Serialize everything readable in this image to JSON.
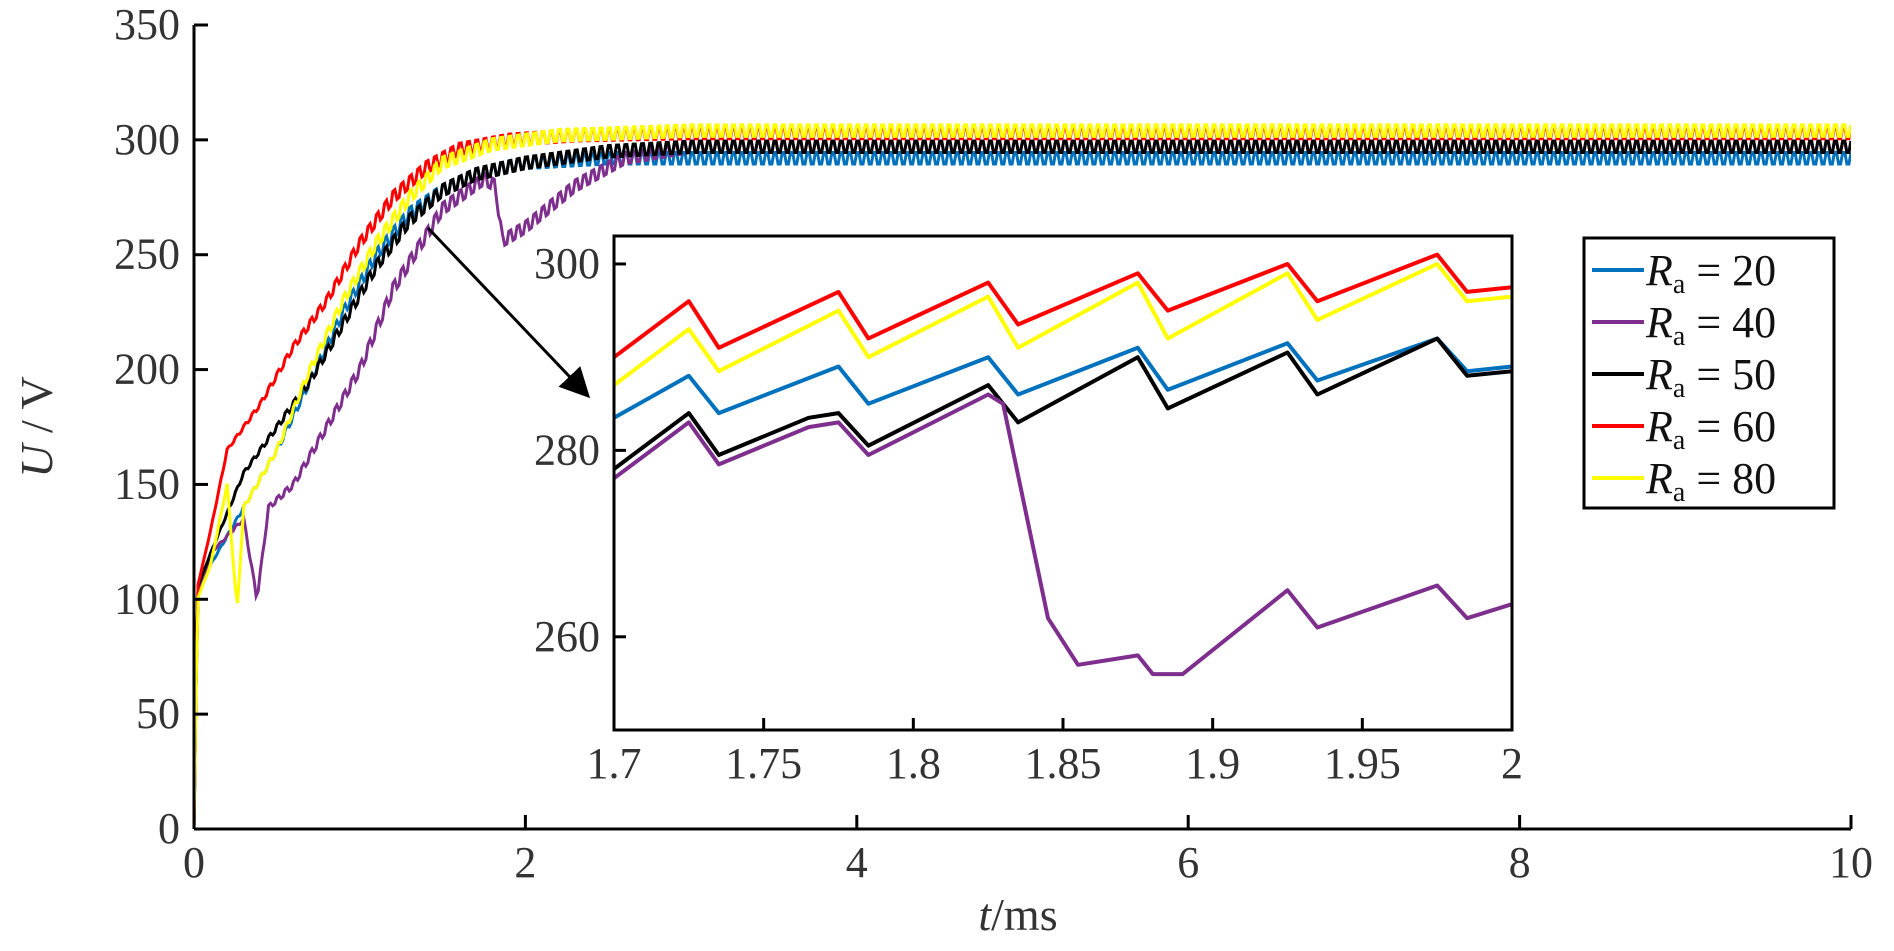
{
  "chart_data": [
    {
      "type": "line",
      "xlabel_var": "t",
      "xlabel_unit": "/ms",
      "ylabel_var": "U",
      "ylabel_unit": " / V",
      "xlim": [
        0,
        10
      ],
      "ylim": [
        0,
        350
      ],
      "xticks": [
        "0",
        "2",
        "4",
        "6",
        "8",
        "10"
      ],
      "yticks": [
        "0",
        "50",
        "100",
        "150",
        "200",
        "250",
        "300",
        "350"
      ],
      "grid": false,
      "legend_position": "right",
      "series": [
        {
          "name_var": "R",
          "name_sub": "a",
          "name_rest": " = 20",
          "color": "#0072BD",
          "x": [
            0,
            0.02,
            0.1,
            0.3,
            0.5,
            0.7,
            0.9,
            1.1,
            1.3,
            1.5,
            1.7,
            2.0,
            2.5,
            3,
            10
          ],
          "y": [
            0,
            105,
            115,
            140,
            165,
            195,
            225,
            250,
            268,
            278,
            285,
            290,
            292,
            292,
            292
          ],
          "steady_ripple": 2.5
        },
        {
          "name_var": "R",
          "name_sub": "a",
          "name_rest": " = 40",
          "color": "#7E2F8E",
          "x": [
            0,
            0.02,
            0.1,
            0.3,
            0.38,
            0.45,
            0.6,
            0.8,
            1.0,
            1.2,
            1.5,
            1.75,
            1.82,
            1.86,
            2.0,
            2.3,
            2.6,
            3.0,
            10
          ],
          "y": [
            0,
            100,
            120,
            135,
            100,
            140,
            150,
            175,
            200,
            235,
            270,
            283,
            280,
            256,
            262,
            280,
            292,
            297,
            297
          ],
          "steady_ripple": 2.5
        },
        {
          "name_var": "R",
          "name_sub": "a",
          "name_rest": " = 50",
          "color": "#000000",
          "x": [
            0,
            0.02,
            0.1,
            0.3,
            0.5,
            0.7,
            0.9,
            1.1,
            1.3,
            1.5,
            1.7,
            2.0,
            2.5,
            3,
            10
          ],
          "y": [
            0,
            105,
            120,
            155,
            175,
            195,
            220,
            245,
            265,
            278,
            285,
            290,
            295,
            297,
            297
          ],
          "steady_ripple": 2.5
        },
        {
          "name_var": "R",
          "name_sub": "a",
          "name_rest": " = 60",
          "color": "#FF0000",
          "x": [
            0,
            0.02,
            0.1,
            0.2,
            0.4,
            0.6,
            0.8,
            1.0,
            1.2,
            1.4,
            1.6,
            1.9,
            2.3,
            3,
            10
          ],
          "y": [
            0,
            105,
            130,
            165,
            185,
            210,
            230,
            255,
            275,
            288,
            296,
            300,
            302,
            303,
            303
          ],
          "steady_ripple": 2.5
        },
        {
          "name_var": "R",
          "name_sub": "a",
          "name_rest": " = 80",
          "color": "#FFFF00",
          "x": [
            0,
            0.02,
            0.1,
            0.2,
            0.26,
            0.3,
            0.5,
            0.7,
            0.9,
            1.1,
            1.3,
            1.5,
            1.8,
            2.2,
            3,
            10
          ],
          "y": [
            0,
            100,
            115,
            150,
            95,
            140,
            165,
            200,
            230,
            255,
            275,
            290,
            298,
            302,
            304,
            304
          ],
          "steady_ripple": 2.5
        }
      ]
    },
    {
      "type": "line",
      "role": "inset",
      "xlim": [
        1.7,
        2.0
      ],
      "ylim": [
        250,
        303
      ],
      "xticks": [
        "1.7",
        "1.75",
        "1.8",
        "1.85",
        "1.9",
        "1.95",
        "2"
      ],
      "yticks": [
        "260",
        "280",
        "300"
      ],
      "grid": false,
      "series": [
        {
          "color": "#FF0000",
          "x": [
            1.7,
            1.725,
            1.735,
            1.775,
            1.785,
            1.825,
            1.835,
            1.875,
            1.885,
            1.925,
            1.935,
            1.975,
            1.985,
            2.0
          ],
          "y": [
            290,
            296,
            291,
            297,
            292,
            298,
            293.5,
            299,
            295,
            300,
            296,
            301,
            297,
            297.5
          ]
        },
        {
          "color": "#FFFF00",
          "x": [
            1.7,
            1.725,
            1.735,
            1.775,
            1.785,
            1.825,
            1.835,
            1.875,
            1.885,
            1.925,
            1.935,
            1.975,
            1.985,
            2.0
          ],
          "y": [
            287,
            293,
            288.5,
            295,
            290,
            296.5,
            291,
            298,
            292,
            299,
            294,
            300,
            296,
            296.5
          ]
        },
        {
          "color": "#0072BD",
          "x": [
            1.7,
            1.725,
            1.735,
            1.775,
            1.785,
            1.825,
            1.835,
            1.875,
            1.885,
            1.925,
            1.935,
            1.975,
            1.985,
            2.0
          ],
          "y": [
            283.5,
            288,
            284,
            289,
            285,
            290,
            286,
            291,
            286.5,
            291.5,
            287.5,
            292,
            288.5,
            289
          ]
        },
        {
          "color": "#000000",
          "x": [
            1.7,
            1.725,
            1.735,
            1.765,
            1.775,
            1.785,
            1.825,
            1.835,
            1.875,
            1.885,
            1.925,
            1.935,
            1.975,
            1.985,
            2.0
          ],
          "y": [
            278,
            284,
            279.5,
            283.5,
            284,
            280.5,
            287,
            283,
            290,
            284.5,
            290.5,
            286,
            292,
            288,
            288.5
          ]
        },
        {
          "color": "#7E2F8E",
          "x": [
            1.7,
            1.725,
            1.735,
            1.765,
            1.775,
            1.785,
            1.825,
            1.83,
            1.845,
            1.855,
            1.865,
            1.875,
            1.88,
            1.89,
            1.925,
            1.935,
            1.975,
            1.985,
            2.0
          ],
          "y": [
            277,
            283,
            278.5,
            282.5,
            283,
            279.5,
            286,
            285,
            262,
            257,
            257.5,
            258,
            256,
            256,
            265,
            261,
            265.5,
            262,
            263.5
          ]
        }
      ]
    }
  ]
}
